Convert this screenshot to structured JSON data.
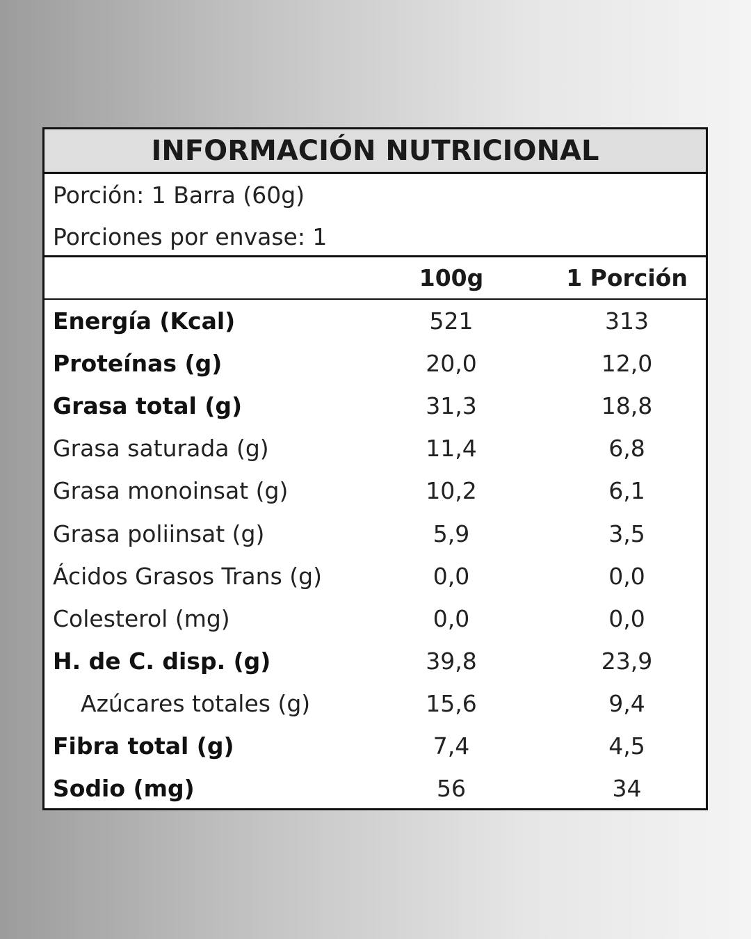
{
  "title": "INFORMACIÓN NUTRICIONAL",
  "serving": {
    "portion": "Porción: 1 Barra (60g)",
    "portions_per_pack": "Porciones por envase: 1"
  },
  "columns": {
    "per100": "100g",
    "perPortion": "1 Porción"
  },
  "rows": [
    {
      "name": "Energía (Kcal)",
      "per100": "521",
      "perPortion": "313",
      "bold": true
    },
    {
      "name": "Proteínas (g)",
      "per100": "20,0",
      "perPortion": "12,0",
      "bold": true
    },
    {
      "name": "Grasa total (g)",
      "per100": "31,3",
      "perPortion": "18,8",
      "bold": true
    },
    {
      "name": "Grasa saturada (g)",
      "per100": "11,4",
      "perPortion": "6,8",
      "bold": false
    },
    {
      "name": "Grasa monoinsat (g)",
      "per100": "10,2",
      "perPortion": "6,1",
      "bold": false
    },
    {
      "name": "Grasa poliinsat (g)",
      "per100": "5,9",
      "perPortion": "3,5",
      "bold": false
    },
    {
      "name": "Ácidos Grasos Trans (g)",
      "per100": "0,0",
      "perPortion": "0,0",
      "bold": false
    },
    {
      "name": "Colesterol (mg)",
      "per100": "0,0",
      "perPortion": "0,0",
      "bold": false
    },
    {
      "name": "H. de C. disp. (g)",
      "per100": "39,8",
      "perPortion": "23,9",
      "bold": true
    },
    {
      "name": "Azúcares totales (g)",
      "per100": "15,6",
      "perPortion": "9,4",
      "bold": false,
      "indent": true
    },
    {
      "name": "Fibra total (g)",
      "per100": "7,4",
      "perPortion": "4,5",
      "bold": true
    },
    {
      "name": "Sodio (mg)",
      "per100": "56",
      "perPortion": "34",
      "bold": true
    }
  ]
}
